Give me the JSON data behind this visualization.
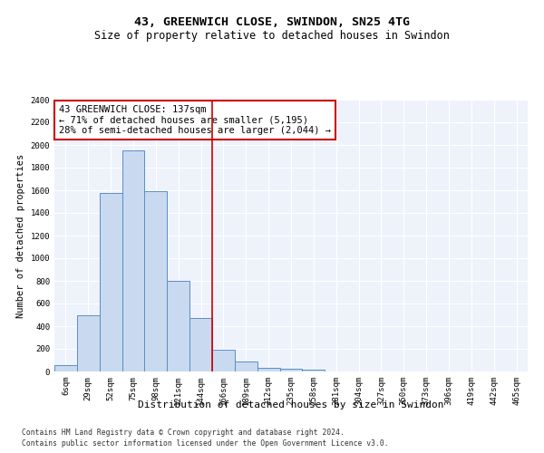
{
  "title": "43, GREENWICH CLOSE, SWINDON, SN25 4TG",
  "subtitle": "Size of property relative to detached houses in Swindon",
  "xlabel": "Distribution of detached houses by size in Swindon",
  "ylabel": "Number of detached properties",
  "categories": [
    "6sqm",
    "29sqm",
    "52sqm",
    "75sqm",
    "98sqm",
    "121sqm",
    "144sqm",
    "166sqm",
    "189sqm",
    "212sqm",
    "235sqm",
    "258sqm",
    "281sqm",
    "304sqm",
    "327sqm",
    "350sqm",
    "373sqm",
    "396sqm",
    "419sqm",
    "442sqm",
    "465sqm"
  ],
  "values": [
    60,
    500,
    1580,
    1950,
    1590,
    800,
    475,
    195,
    90,
    35,
    28,
    20,
    0,
    0,
    0,
    0,
    0,
    0,
    0,
    0,
    0
  ],
  "bar_color": "#c8d9f0",
  "bar_edge_color": "#5b8ec4",
  "bg_color": "#eef2fb",
  "grid_color": "#ffffff",
  "vline_color": "#cc0000",
  "vline_x": 6.5,
  "annotation_text": "43 GREENWICH CLOSE: 137sqm\n← 71% of detached houses are smaller (5,195)\n28% of semi-detached houses are larger (2,044) →",
  "annotation_box_color": "#cc0000",
  "ylim": [
    0,
    2400
  ],
  "yticks": [
    0,
    200,
    400,
    600,
    800,
    1000,
    1200,
    1400,
    1600,
    1800,
    2000,
    2200,
    2400
  ],
  "footer1": "Contains HM Land Registry data © Crown copyright and database right 2024.",
  "footer2": "Contains public sector information licensed under the Open Government Licence v3.0.",
  "title_fontsize": 9.5,
  "subtitle_fontsize": 8.5,
  "xlabel_fontsize": 8,
  "ylabel_fontsize": 7.5,
  "tick_fontsize": 6.5,
  "annotation_fontsize": 7.5,
  "footer_fontsize": 5.8
}
